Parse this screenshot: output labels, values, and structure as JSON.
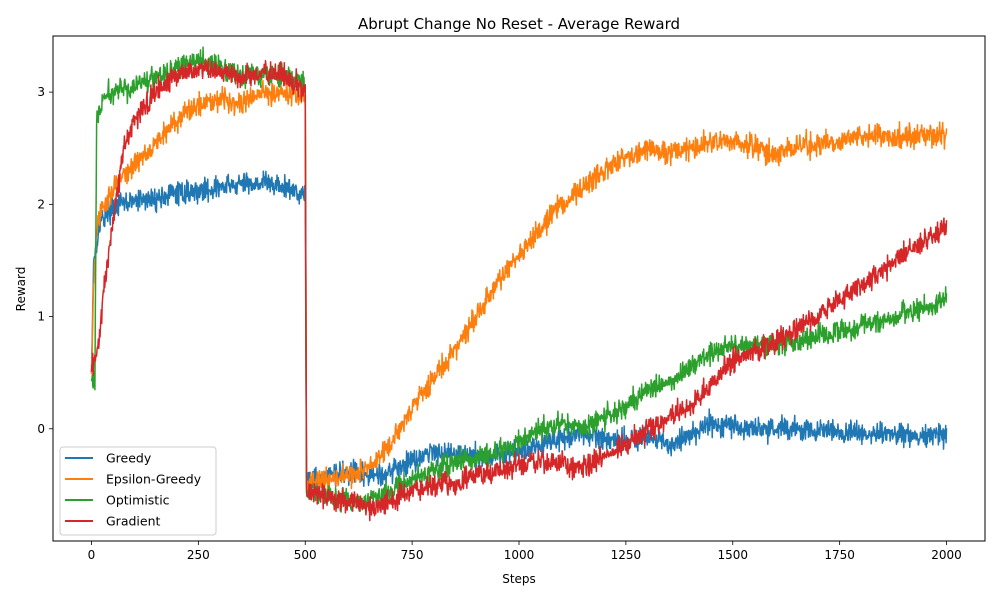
{
  "chart_data": {
    "type": "line",
    "title": "Abrupt Change No Reset - Average Reward",
    "xlabel": "Steps",
    "ylabel": "Reward",
    "xlim": [
      -90,
      2090
    ],
    "ylim": [
      -1.0,
      3.5
    ],
    "xticks": [
      0,
      250,
      500,
      750,
      1000,
      1250,
      1500,
      1750,
      2000
    ],
    "yticks": [
      0,
      1,
      2,
      3
    ],
    "grid": false,
    "legend_position": "lower-left",
    "series": [
      {
        "name": "Greedy",
        "color": "#1f77b4",
        "noise": 0.05,
        "points": [
          [
            0,
            0.5
          ],
          [
            5,
            1.5
          ],
          [
            20,
            1.85
          ],
          [
            50,
            1.98
          ],
          [
            100,
            2.03
          ],
          [
            150,
            2.05
          ],
          [
            200,
            2.1
          ],
          [
            250,
            2.12
          ],
          [
            300,
            2.15
          ],
          [
            350,
            2.18
          ],
          [
            400,
            2.2
          ],
          [
            450,
            2.15
          ],
          [
            495,
            2.1
          ],
          [
            500,
            2.1
          ],
          [
            503,
            -0.45
          ],
          [
            550,
            -0.42
          ],
          [
            600,
            -0.4
          ],
          [
            650,
            -0.42
          ],
          [
            700,
            -0.38
          ],
          [
            750,
            -0.28
          ],
          [
            800,
            -0.2
          ],
          [
            850,
            -0.22
          ],
          [
            900,
            -0.24
          ],
          [
            950,
            -0.24
          ],
          [
            1000,
            -0.2
          ],
          [
            1050,
            -0.14
          ],
          [
            1100,
            -0.08
          ],
          [
            1150,
            -0.05
          ],
          [
            1200,
            -0.08
          ],
          [
            1250,
            -0.1
          ],
          [
            1300,
            -0.08
          ],
          [
            1350,
            -0.15
          ],
          [
            1400,
            -0.05
          ],
          [
            1450,
            0.05
          ],
          [
            1500,
            0.03
          ],
          [
            1550,
            0.0
          ],
          [
            1600,
            0.0
          ],
          [
            1650,
            0.0
          ],
          [
            1700,
            -0.02
          ],
          [
            1750,
            -0.03
          ],
          [
            1800,
            -0.04
          ],
          [
            1850,
            -0.05
          ],
          [
            1900,
            -0.06
          ],
          [
            1950,
            -0.06
          ],
          [
            2000,
            -0.05
          ]
        ]
      },
      {
        "name": "Epsilon-Greedy",
        "color": "#ff7f0e",
        "noise": 0.05,
        "points": [
          [
            0,
            0.45
          ],
          [
            5,
            1.3
          ],
          [
            15,
            1.85
          ],
          [
            50,
            2.15
          ],
          [
            100,
            2.35
          ],
          [
            150,
            2.55
          ],
          [
            200,
            2.75
          ],
          [
            250,
            2.9
          ],
          [
            300,
            2.95
          ],
          [
            350,
            2.9
          ],
          [
            400,
            3.0
          ],
          [
            450,
            3.0
          ],
          [
            495,
            2.95
          ],
          [
            500,
            2.95
          ],
          [
            503,
            -0.5
          ],
          [
            550,
            -0.45
          ],
          [
            600,
            -0.42
          ],
          [
            650,
            -0.35
          ],
          [
            700,
            -0.15
          ],
          [
            750,
            0.2
          ],
          [
            800,
            0.45
          ],
          [
            850,
            0.7
          ],
          [
            900,
            1.0
          ],
          [
            950,
            1.3
          ],
          [
            1000,
            1.55
          ],
          [
            1050,
            1.8
          ],
          [
            1100,
            2.0
          ],
          [
            1150,
            2.15
          ],
          [
            1200,
            2.3
          ],
          [
            1250,
            2.42
          ],
          [
            1300,
            2.5
          ],
          [
            1350,
            2.45
          ],
          [
            1400,
            2.5
          ],
          [
            1450,
            2.55
          ],
          [
            1500,
            2.55
          ],
          [
            1550,
            2.5
          ],
          [
            1600,
            2.45
          ],
          [
            1650,
            2.5
          ],
          [
            1700,
            2.55
          ],
          [
            1750,
            2.55
          ],
          [
            1800,
            2.6
          ],
          [
            1850,
            2.62
          ],
          [
            1900,
            2.6
          ],
          [
            1950,
            2.62
          ],
          [
            2000,
            2.62
          ]
        ]
      },
      {
        "name": "Optimistic",
        "color": "#2ca02c",
        "noise": 0.05,
        "points": [
          [
            0,
            0.45
          ],
          [
            8,
            0.4
          ],
          [
            12,
            2.75
          ],
          [
            30,
            2.95
          ],
          [
            50,
            3.0
          ],
          [
            100,
            3.05
          ],
          [
            150,
            3.15
          ],
          [
            200,
            3.22
          ],
          [
            250,
            3.28
          ],
          [
            300,
            3.22
          ],
          [
            350,
            3.15
          ],
          [
            400,
            3.18
          ],
          [
            450,
            3.15
          ],
          [
            495,
            3.08
          ],
          [
            500,
            3.0
          ],
          [
            503,
            -0.55
          ],
          [
            550,
            -0.6
          ],
          [
            600,
            -0.65
          ],
          [
            650,
            -0.65
          ],
          [
            700,
            -0.55
          ],
          [
            750,
            -0.45
          ],
          [
            800,
            -0.38
          ],
          [
            850,
            -0.3
          ],
          [
            900,
            -0.25
          ],
          [
            950,
            -0.22
          ],
          [
            1000,
            -0.12
          ],
          [
            1050,
            0.0
          ],
          [
            1100,
            0.05
          ],
          [
            1150,
            0.0
          ],
          [
            1200,
            0.1
          ],
          [
            1250,
            0.2
          ],
          [
            1300,
            0.35
          ],
          [
            1350,
            0.42
          ],
          [
            1400,
            0.55
          ],
          [
            1450,
            0.68
          ],
          [
            1500,
            0.75
          ],
          [
            1550,
            0.75
          ],
          [
            1600,
            0.75
          ],
          [
            1650,
            0.78
          ],
          [
            1700,
            0.82
          ],
          [
            1750,
            0.85
          ],
          [
            1800,
            0.92
          ],
          [
            1850,
            0.98
          ],
          [
            1900,
            1.03
          ],
          [
            1950,
            1.08
          ],
          [
            2000,
            1.15
          ]
        ]
      },
      {
        "name": "Gradient",
        "color": "#d62728",
        "noise": 0.05,
        "points": [
          [
            0,
            0.5
          ],
          [
            15,
            0.7
          ],
          [
            30,
            1.25
          ],
          [
            50,
            1.85
          ],
          [
            75,
            2.5
          ],
          [
            100,
            2.75
          ],
          [
            150,
            3.0
          ],
          [
            200,
            3.15
          ],
          [
            250,
            3.22
          ],
          [
            300,
            3.18
          ],
          [
            350,
            3.12
          ],
          [
            400,
            3.18
          ],
          [
            450,
            3.15
          ],
          [
            495,
            3.02
          ],
          [
            500,
            3.0
          ],
          [
            503,
            -0.55
          ],
          [
            550,
            -0.6
          ],
          [
            600,
            -0.65
          ],
          [
            650,
            -0.7
          ],
          [
            700,
            -0.65
          ],
          [
            750,
            -0.55
          ],
          [
            800,
            -0.5
          ],
          [
            850,
            -0.48
          ],
          [
            900,
            -0.4
          ],
          [
            950,
            -0.4
          ],
          [
            1000,
            -0.32
          ],
          [
            1050,
            -0.28
          ],
          [
            1100,
            -0.3
          ],
          [
            1150,
            -0.35
          ],
          [
            1200,
            -0.25
          ],
          [
            1250,
            -0.15
          ],
          [
            1300,
            0.0
          ],
          [
            1350,
            0.1
          ],
          [
            1400,
            0.2
          ],
          [
            1450,
            0.4
          ],
          [
            1500,
            0.6
          ],
          [
            1550,
            0.7
          ],
          [
            1600,
            0.78
          ],
          [
            1650,
            0.88
          ],
          [
            1700,
            1.0
          ],
          [
            1750,
            1.15
          ],
          [
            1800,
            1.28
          ],
          [
            1850,
            1.42
          ],
          [
            1900,
            1.55
          ],
          [
            1950,
            1.68
          ],
          [
            2000,
            1.8
          ]
        ]
      }
    ]
  }
}
